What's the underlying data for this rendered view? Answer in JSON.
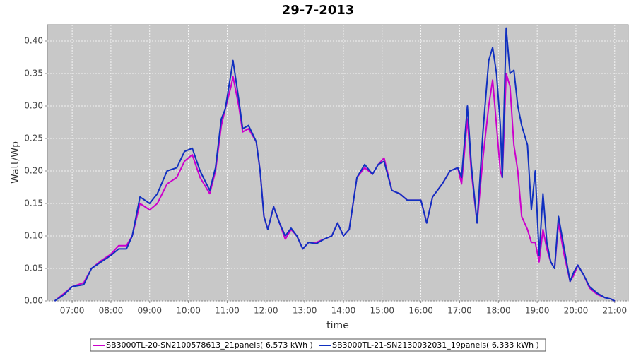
{
  "chart_data": {
    "type": "line",
    "title": "29-7-2013",
    "x_label": "time",
    "y_label": "Watt/Wp",
    "x": [
      6.55,
      6.8,
      7.0,
      7.3,
      7.5,
      7.75,
      8.0,
      8.2,
      8.4,
      8.55,
      8.75,
      9.0,
      9.2,
      9.45,
      9.7,
      9.9,
      10.1,
      10.3,
      10.55,
      10.7,
      10.85,
      10.95,
      11.1,
      11.15,
      11.3,
      11.4,
      11.55,
      11.75,
      11.85,
      11.95,
      12.05,
      12.2,
      12.35,
      12.5,
      12.65,
      12.8,
      12.95,
      13.1,
      13.3,
      13.5,
      13.7,
      13.85,
      14.0,
      14.15,
      14.35,
      14.55,
      14.75,
      14.9,
      15.05,
      15.25,
      15.45,
      15.65,
      15.85,
      16.0,
      16.15,
      16.3,
      16.55,
      16.75,
      16.95,
      17.05,
      17.2,
      17.3,
      17.45,
      17.6,
      17.75,
      17.85,
      17.95,
      18.05,
      18.1,
      18.2,
      18.3,
      18.4,
      18.5,
      18.6,
      18.75,
      18.85,
      18.95,
      19.05,
      19.15,
      19.25,
      19.35,
      19.45,
      19.55,
      19.7,
      19.85,
      19.95,
      20.05,
      20.2,
      20.35,
      20.55,
      20.75,
      20.9,
      21.0
    ],
    "series": [
      {
        "name": "SB3000TL-20-SN2100578613_21panels( 6.573 kWh )",
        "color": "#cc00cc",
        "values": [
          0,
          0.012,
          0.022,
          0.028,
          0.05,
          0.062,
          0.072,
          0.085,
          0.085,
          0.1,
          0.15,
          0.14,
          0.15,
          0.18,
          0.19,
          0.215,
          0.225,
          0.19,
          0.165,
          0.2,
          0.27,
          0.295,
          0.33,
          0.345,
          0.3,
          0.26,
          0.265,
          0.245,
          0.2,
          0.13,
          0.11,
          0.145,
          0.12,
          0.095,
          0.11,
          0.1,
          0.08,
          0.09,
          0.09,
          0.095,
          0.1,
          0.12,
          0.1,
          0.11,
          0.19,
          0.205,
          0.195,
          0.21,
          0.22,
          0.17,
          0.165,
          0.155,
          0.155,
          0.155,
          0.12,
          0.16,
          0.18,
          0.2,
          0.205,
          0.18,
          0.28,
          0.2,
          0.12,
          0.22,
          0.3,
          0.34,
          0.27,
          0.2,
          0.19,
          0.35,
          0.33,
          0.24,
          0.2,
          0.13,
          0.11,
          0.09,
          0.09,
          0.06,
          0.11,
          0.08,
          0.06,
          0.05,
          0.12,
          0.07,
          0.03,
          0.04,
          0.055,
          0.04,
          0.02,
          0.01,
          0.005,
          0.003,
          0
        ]
      },
      {
        "name": "SB3000TL-21-SN2130032031_19panels( 6.333 kWh )",
        "color": "#1030c0",
        "values": [
          0,
          0.01,
          0.022,
          0.025,
          0.05,
          0.06,
          0.07,
          0.08,
          0.08,
          0.1,
          0.16,
          0.15,
          0.165,
          0.2,
          0.205,
          0.23,
          0.235,
          0.2,
          0.17,
          0.205,
          0.28,
          0.295,
          0.35,
          0.37,
          0.31,
          0.265,
          0.27,
          0.245,
          0.2,
          0.13,
          0.11,
          0.145,
          0.12,
          0.1,
          0.112,
          0.1,
          0.08,
          0.09,
          0.088,
          0.095,
          0.1,
          0.12,
          0.1,
          0.11,
          0.19,
          0.21,
          0.195,
          0.21,
          0.215,
          0.17,
          0.165,
          0.155,
          0.155,
          0.155,
          0.12,
          0.16,
          0.18,
          0.2,
          0.205,
          0.19,
          0.3,
          0.21,
          0.12,
          0.26,
          0.37,
          0.39,
          0.35,
          0.27,
          0.19,
          0.42,
          0.35,
          0.355,
          0.3,
          0.27,
          0.24,
          0.14,
          0.2,
          0.07,
          0.165,
          0.09,
          0.06,
          0.05,
          0.13,
          0.08,
          0.03,
          0.045,
          0.055,
          0.04,
          0.022,
          0.012,
          0.005,
          0.003,
          0
        ]
      }
    ],
    "xlim": [
      6.36,
      21.35
    ],
    "xticks": [
      {
        "value": 7,
        "label": "07:00"
      },
      {
        "value": 8,
        "label": "08:00"
      },
      {
        "value": 9,
        "label": "09:00"
      },
      {
        "value": 10,
        "label": "10:00"
      },
      {
        "value": 11,
        "label": "11:00"
      },
      {
        "value": 12,
        "label": "12:00"
      },
      {
        "value": 13,
        "label": "13:00"
      },
      {
        "value": 14,
        "label": "14:00"
      },
      {
        "value": 15,
        "label": "15:00"
      },
      {
        "value": 16,
        "label": "16:00"
      },
      {
        "value": 17,
        "label": "17:00"
      },
      {
        "value": 18,
        "label": "18:00"
      },
      {
        "value": 19,
        "label": "19:00"
      },
      {
        "value": 20,
        "label": "20:00"
      },
      {
        "value": 21,
        "label": "21:00"
      }
    ],
    "ylim": [
      0,
      0.425
    ],
    "yticks": [
      {
        "value": 0,
        "label": "0.00"
      },
      {
        "value": 0.05,
        "label": "0.05"
      },
      {
        "value": 0.1,
        "label": "0.10"
      },
      {
        "value": 0.15,
        "label": "0.15"
      },
      {
        "value": 0.2,
        "label": "0.20"
      },
      {
        "value": 0.25,
        "label": "0.25"
      },
      {
        "value": 0.3,
        "label": "0.30"
      },
      {
        "value": 0.35,
        "label": "0.35"
      },
      {
        "value": 0.4,
        "label": "0.40"
      }
    ],
    "grid": true
  }
}
